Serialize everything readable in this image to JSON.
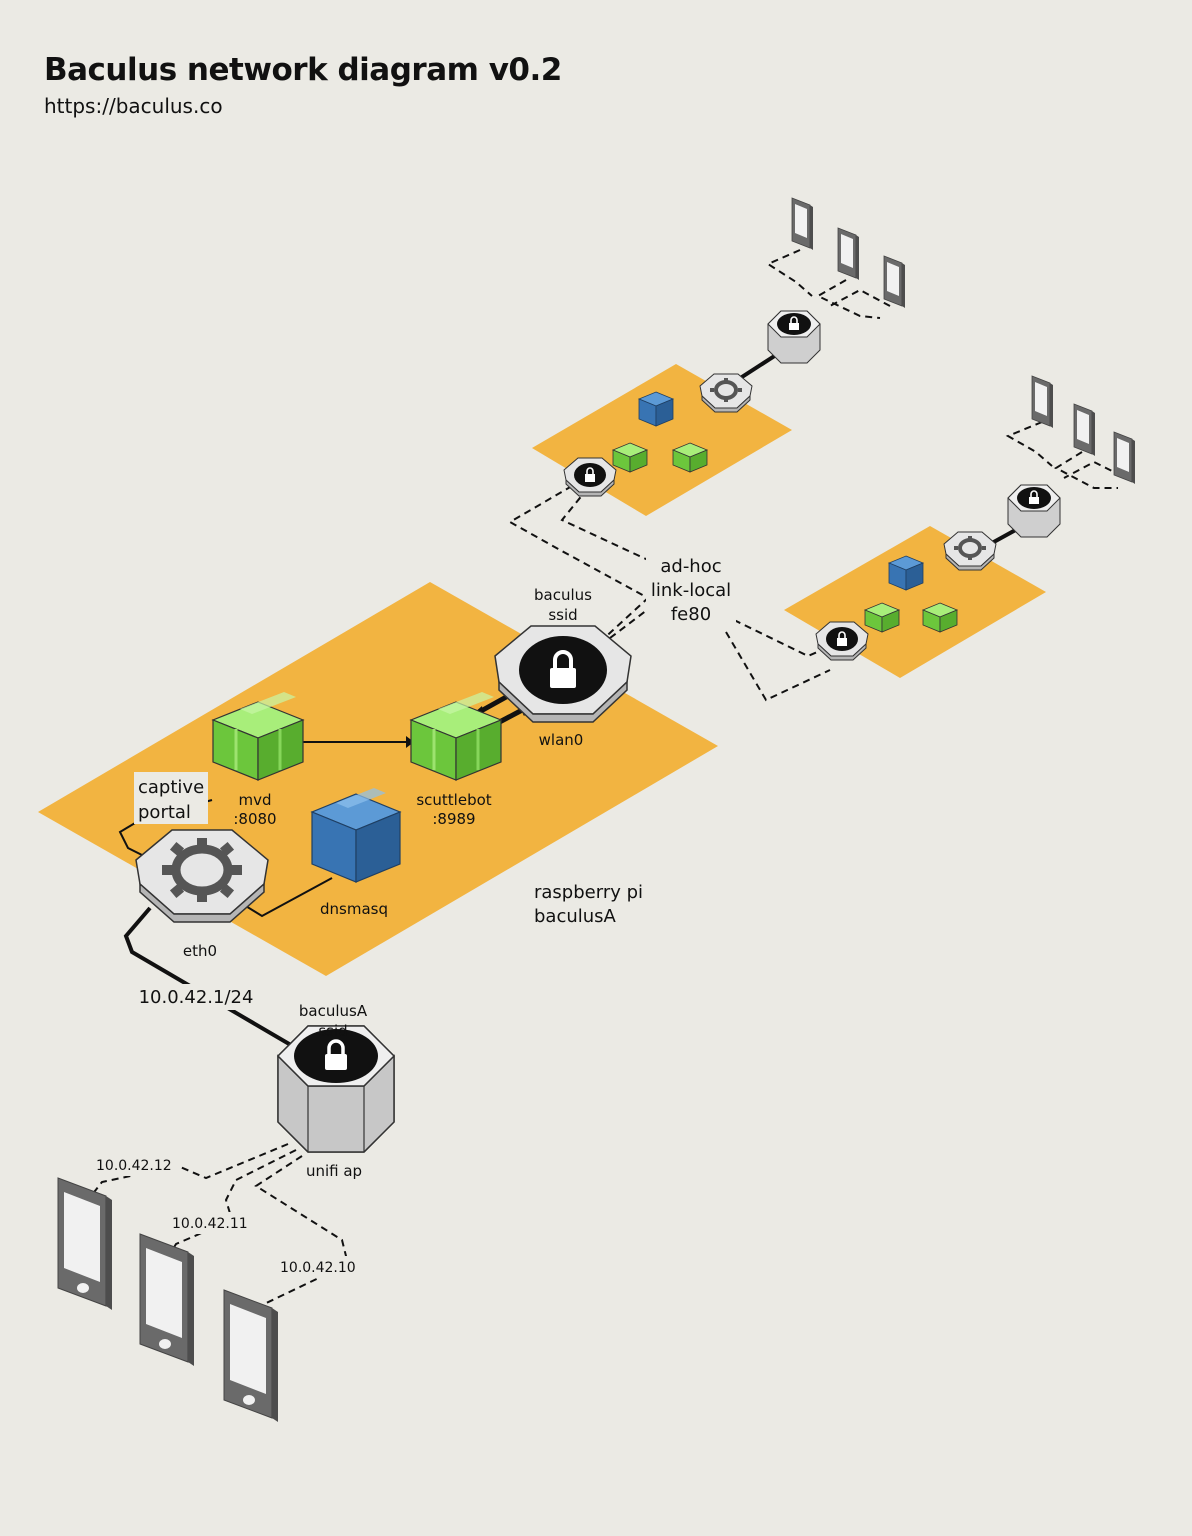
{
  "title": "Baculus network diagram v0.2",
  "subtitle": "https://baculus.co",
  "labels": {
    "baculus_ssid_1": "baculus",
    "baculus_ssid_2": "ssid",
    "adhoc_1": "ad-hoc",
    "adhoc_2": "link-local",
    "adhoc_3": "fe80",
    "wlan0": "wlan0",
    "captive_1": "captive",
    "captive_2": "portal",
    "mvd_1": "mvd",
    "mvd_2": ":8080",
    "scuttlebot_1": "scuttlebot",
    "scuttlebot_2": ":8989",
    "dnsmasq": "dnsmasq",
    "rpi_1": "raspberry pi",
    "rpi_2": "baculusA",
    "eth0": "eth0",
    "subnet": "10.0.42.1/24",
    "baculusA_ssid_1": "baculusA",
    "baculusA_ssid_2": "ssid",
    "unifi": "unifi ap",
    "ip_12": "10.0.42.12",
    "ip_11": "10.0.42.11",
    "ip_10": "10.0.42.10"
  },
  "colors": {
    "platform": "#f2b441",
    "green_box": "#7dd64a",
    "blue_box": "#3a7fc1",
    "device": "#d9d9d9",
    "background": "#ebeae4"
  },
  "icons": [
    "gear-icon",
    "lock-icon",
    "phone-icon",
    "box-icon"
  ]
}
